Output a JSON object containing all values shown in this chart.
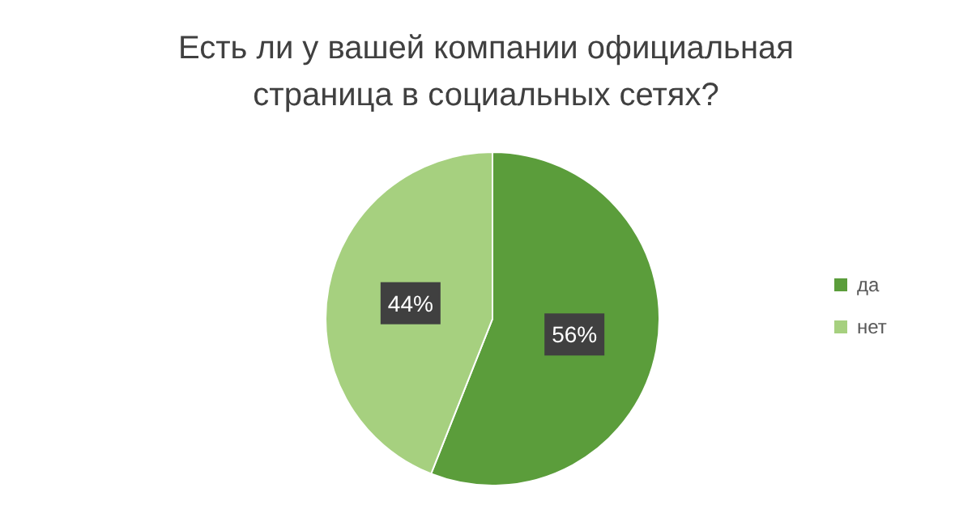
{
  "chart_data": {
    "type": "pie",
    "title": "Есть ли у вашей компании официальная страница в социальных сетях?",
    "categories": [
      "да",
      "нет"
    ],
    "values": [
      56,
      44
    ],
    "colors": [
      "#5b9d3b",
      "#a6d07f"
    ],
    "value_labels": [
      "56%",
      "44%"
    ],
    "legend": "right"
  }
}
